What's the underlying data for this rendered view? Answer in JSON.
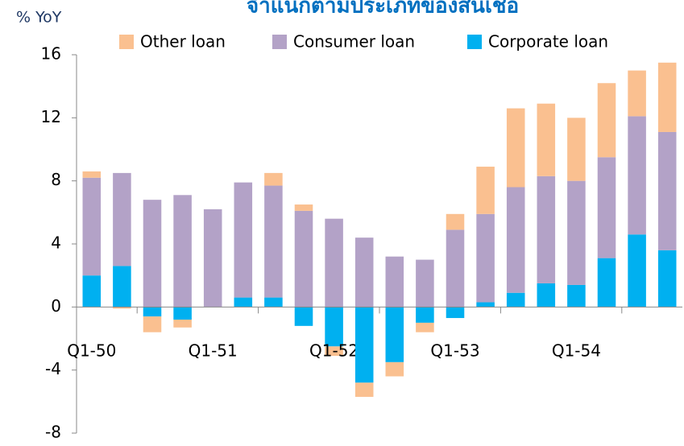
{
  "chart_data": {
    "type": "bar",
    "stacked": true,
    "title": "จำแนกตามประเภทของสินเชื่อ",
    "y_label": "% YoY",
    "categories": [
      "Q1-50",
      null,
      null,
      null,
      "Q1-51",
      null,
      null,
      null,
      "Q1-52",
      null,
      null,
      null,
      "Q1-53",
      null,
      null,
      null,
      "Q1-54",
      null,
      null,
      null
    ],
    "series": [
      {
        "name": "Other loan",
        "color": "#fac090",
        "values": [
          0.4,
          -0.1,
          -1.0,
          -0.5,
          0,
          0,
          0.8,
          0.4,
          -0.6,
          -0.9,
          -0.9,
          -0.6,
          1.0,
          3.0,
          5.0,
          4.6,
          4.0,
          4.7,
          2.9,
          4.4
        ]
      },
      {
        "name": "Consumer loan",
        "color": "#b3a2c7",
        "values": [
          6.2,
          5.9,
          6.8,
          7.1,
          6.2,
          7.3,
          7.1,
          6.1,
          5.6,
          4.4,
          3.2,
          3.0,
          4.9,
          5.6,
          6.7,
          6.8,
          6.6,
          6.4,
          7.5,
          7.5
        ]
      },
      {
        "name": "Corporate loan",
        "color": "#00b0f0",
        "values": [
          2.0,
          2.6,
          -0.6,
          -0.8,
          0,
          0.6,
          0.6,
          -1.2,
          -2.5,
          -4.8,
          -3.5,
          -1.0,
          -0.7,
          0.3,
          0.9,
          1.5,
          1.4,
          3.1,
          4.6,
          3.6
        ]
      }
    ],
    "ylim": [
      -8,
      16
    ],
    "yticks": [
      -8,
      -4,
      0,
      4,
      8,
      12,
      16
    ],
    "legend": "top"
  }
}
